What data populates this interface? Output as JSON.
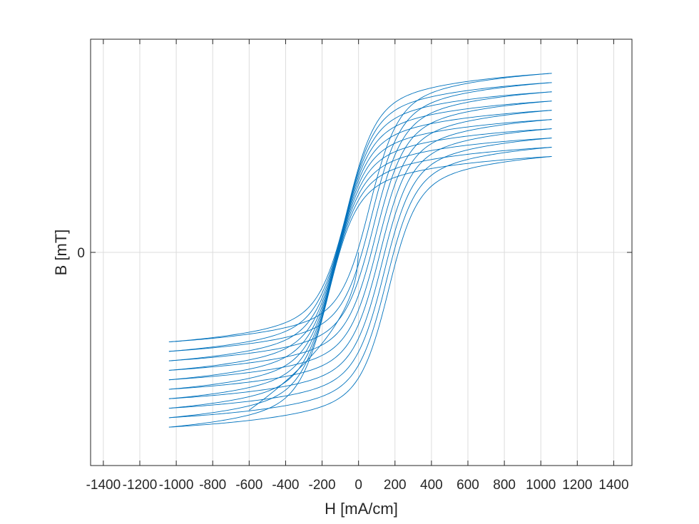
{
  "chart_data": {
    "type": "line",
    "title": "",
    "xlabel": "H [mA/cm]",
    "ylabel": "B [mT]",
    "xlim": [
      -1470,
      1500
    ],
    "ylim": [
      -1,
      1
    ],
    "x_ticks": [
      -1400,
      -1200,
      -1000,
      -800,
      -600,
      -400,
      -200,
      0,
      200,
      400,
      600,
      800,
      1000,
      1200,
      1400
    ],
    "x_tick_labels": [
      "-1400",
      "-1200",
      "-1000",
      "-800",
      "-600",
      "-400",
      "-200",
      "0",
      "200",
      "400",
      "600",
      "800",
      "1000",
      "1200",
      "1400"
    ],
    "y_ticks": [
      0
    ],
    "y_tick_labels": [
      "0"
    ],
    "grid": true,
    "box": true,
    "series_color": "#0072BD",
    "hysteresis_loops": {
      "count": 10,
      "h_min": -1040,
      "h_max": 1060,
      "b_at_h_max_top": 0.84,
      "b_at_h_max_bottom": 0.45,
      "b_at_h_min_top": -0.42,
      "b_at_h_min_bottom": -0.82,
      "coercive_field_inner": 60,
      "coercive_field_outer": 165
    },
    "initial_curve": {
      "start": [
        0,
        0
      ],
      "end": [
        -600,
        -0.74
      ]
    }
  }
}
